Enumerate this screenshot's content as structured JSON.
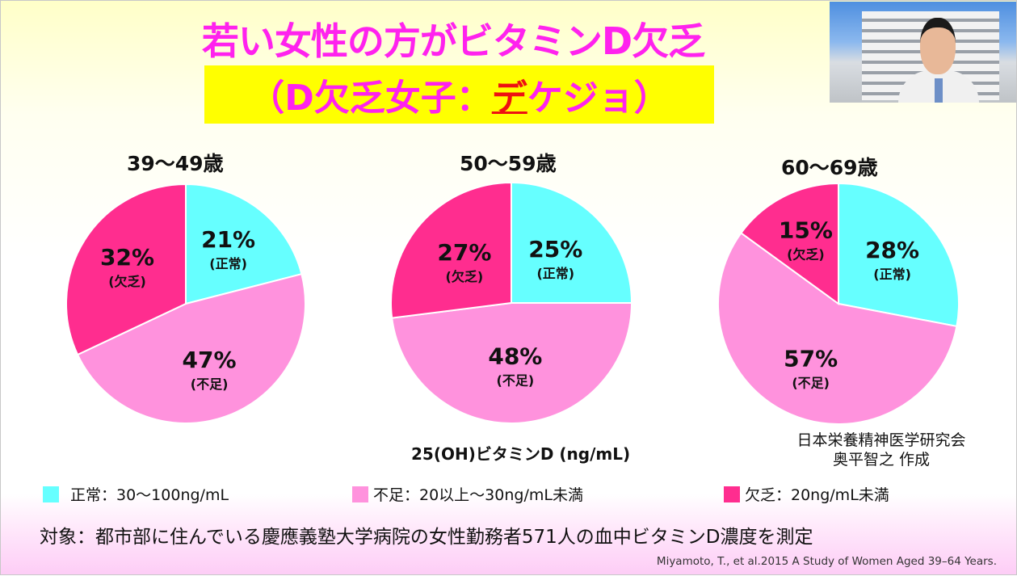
{
  "title": {
    "line1": "若い女性の方がビタミンD欠乏",
    "line2_prefix": "（D欠乏女子：",
    "line2_highlight": "デ",
    "line2_suffix": "ケジョ）"
  },
  "colors": {
    "title": "#ff22ee",
    "highlight_bg": "#ffff00",
    "highlight_char": "#ee1111",
    "normal": "#66ffff",
    "insufficient": "#ff92dd",
    "deficient": "#ff2d8f"
  },
  "chart_data": [
    {
      "type": "pie",
      "title": "39〜49歳",
      "start_angle": "12 o'clock, clockwise",
      "slices": [
        {
          "label": "(正常)",
          "value": 21,
          "display": "21%",
          "key": "normal"
        },
        {
          "label": "(不足)",
          "value": 47,
          "display": "47%",
          "key": "insufficient"
        },
        {
          "label": "(欠乏)",
          "value": 32,
          "display": "32%",
          "key": "deficient"
        }
      ]
    },
    {
      "type": "pie",
      "title": "50〜59歳",
      "start_angle": "12 o'clock, clockwise",
      "slices": [
        {
          "label": "(正常)",
          "value": 25,
          "display": "25%",
          "key": "normal"
        },
        {
          "label": "(不足)",
          "value": 48,
          "display": "48%",
          "key": "insufficient"
        },
        {
          "label": "(欠乏)",
          "value": 27,
          "display": "27%",
          "key": "deficient"
        }
      ]
    },
    {
      "type": "pie",
      "title": "60〜69歳",
      "start_angle": "12 o'clock, clockwise",
      "slices": [
        {
          "label": "(正常)",
          "value": 28,
          "display": "28%",
          "key": "normal"
        },
        {
          "label": "(不足)",
          "value": 57,
          "display": "57%",
          "key": "insufficient"
        },
        {
          "label": "(欠乏)",
          "value": 15,
          "display": "15%",
          "key": "deficient"
        }
      ]
    }
  ],
  "unit_label": "25(OH)ビタミンD  (ng/mL)",
  "credit": {
    "line1": "日本栄養精神医学研究会",
    "line2": "奥平智之  作成"
  },
  "legend": [
    {
      "key": "normal",
      "label": "正常：30〜100ng/mL"
    },
    {
      "key": "insufficient",
      "label": "不足：20以上〜30ng/mL未満"
    },
    {
      "key": "deficient",
      "label": "欠乏：20ng/mL未満"
    }
  ],
  "subject": "対象：都市部に住んでいる慶應義塾大学病院の女性勤務者571人の血中ビタミンD濃度を測定",
  "citation": "Miyamoto, T., et al.2015  A Study of Women Aged 39–64 Years.",
  "presenter_video": "presenter-webcam"
}
